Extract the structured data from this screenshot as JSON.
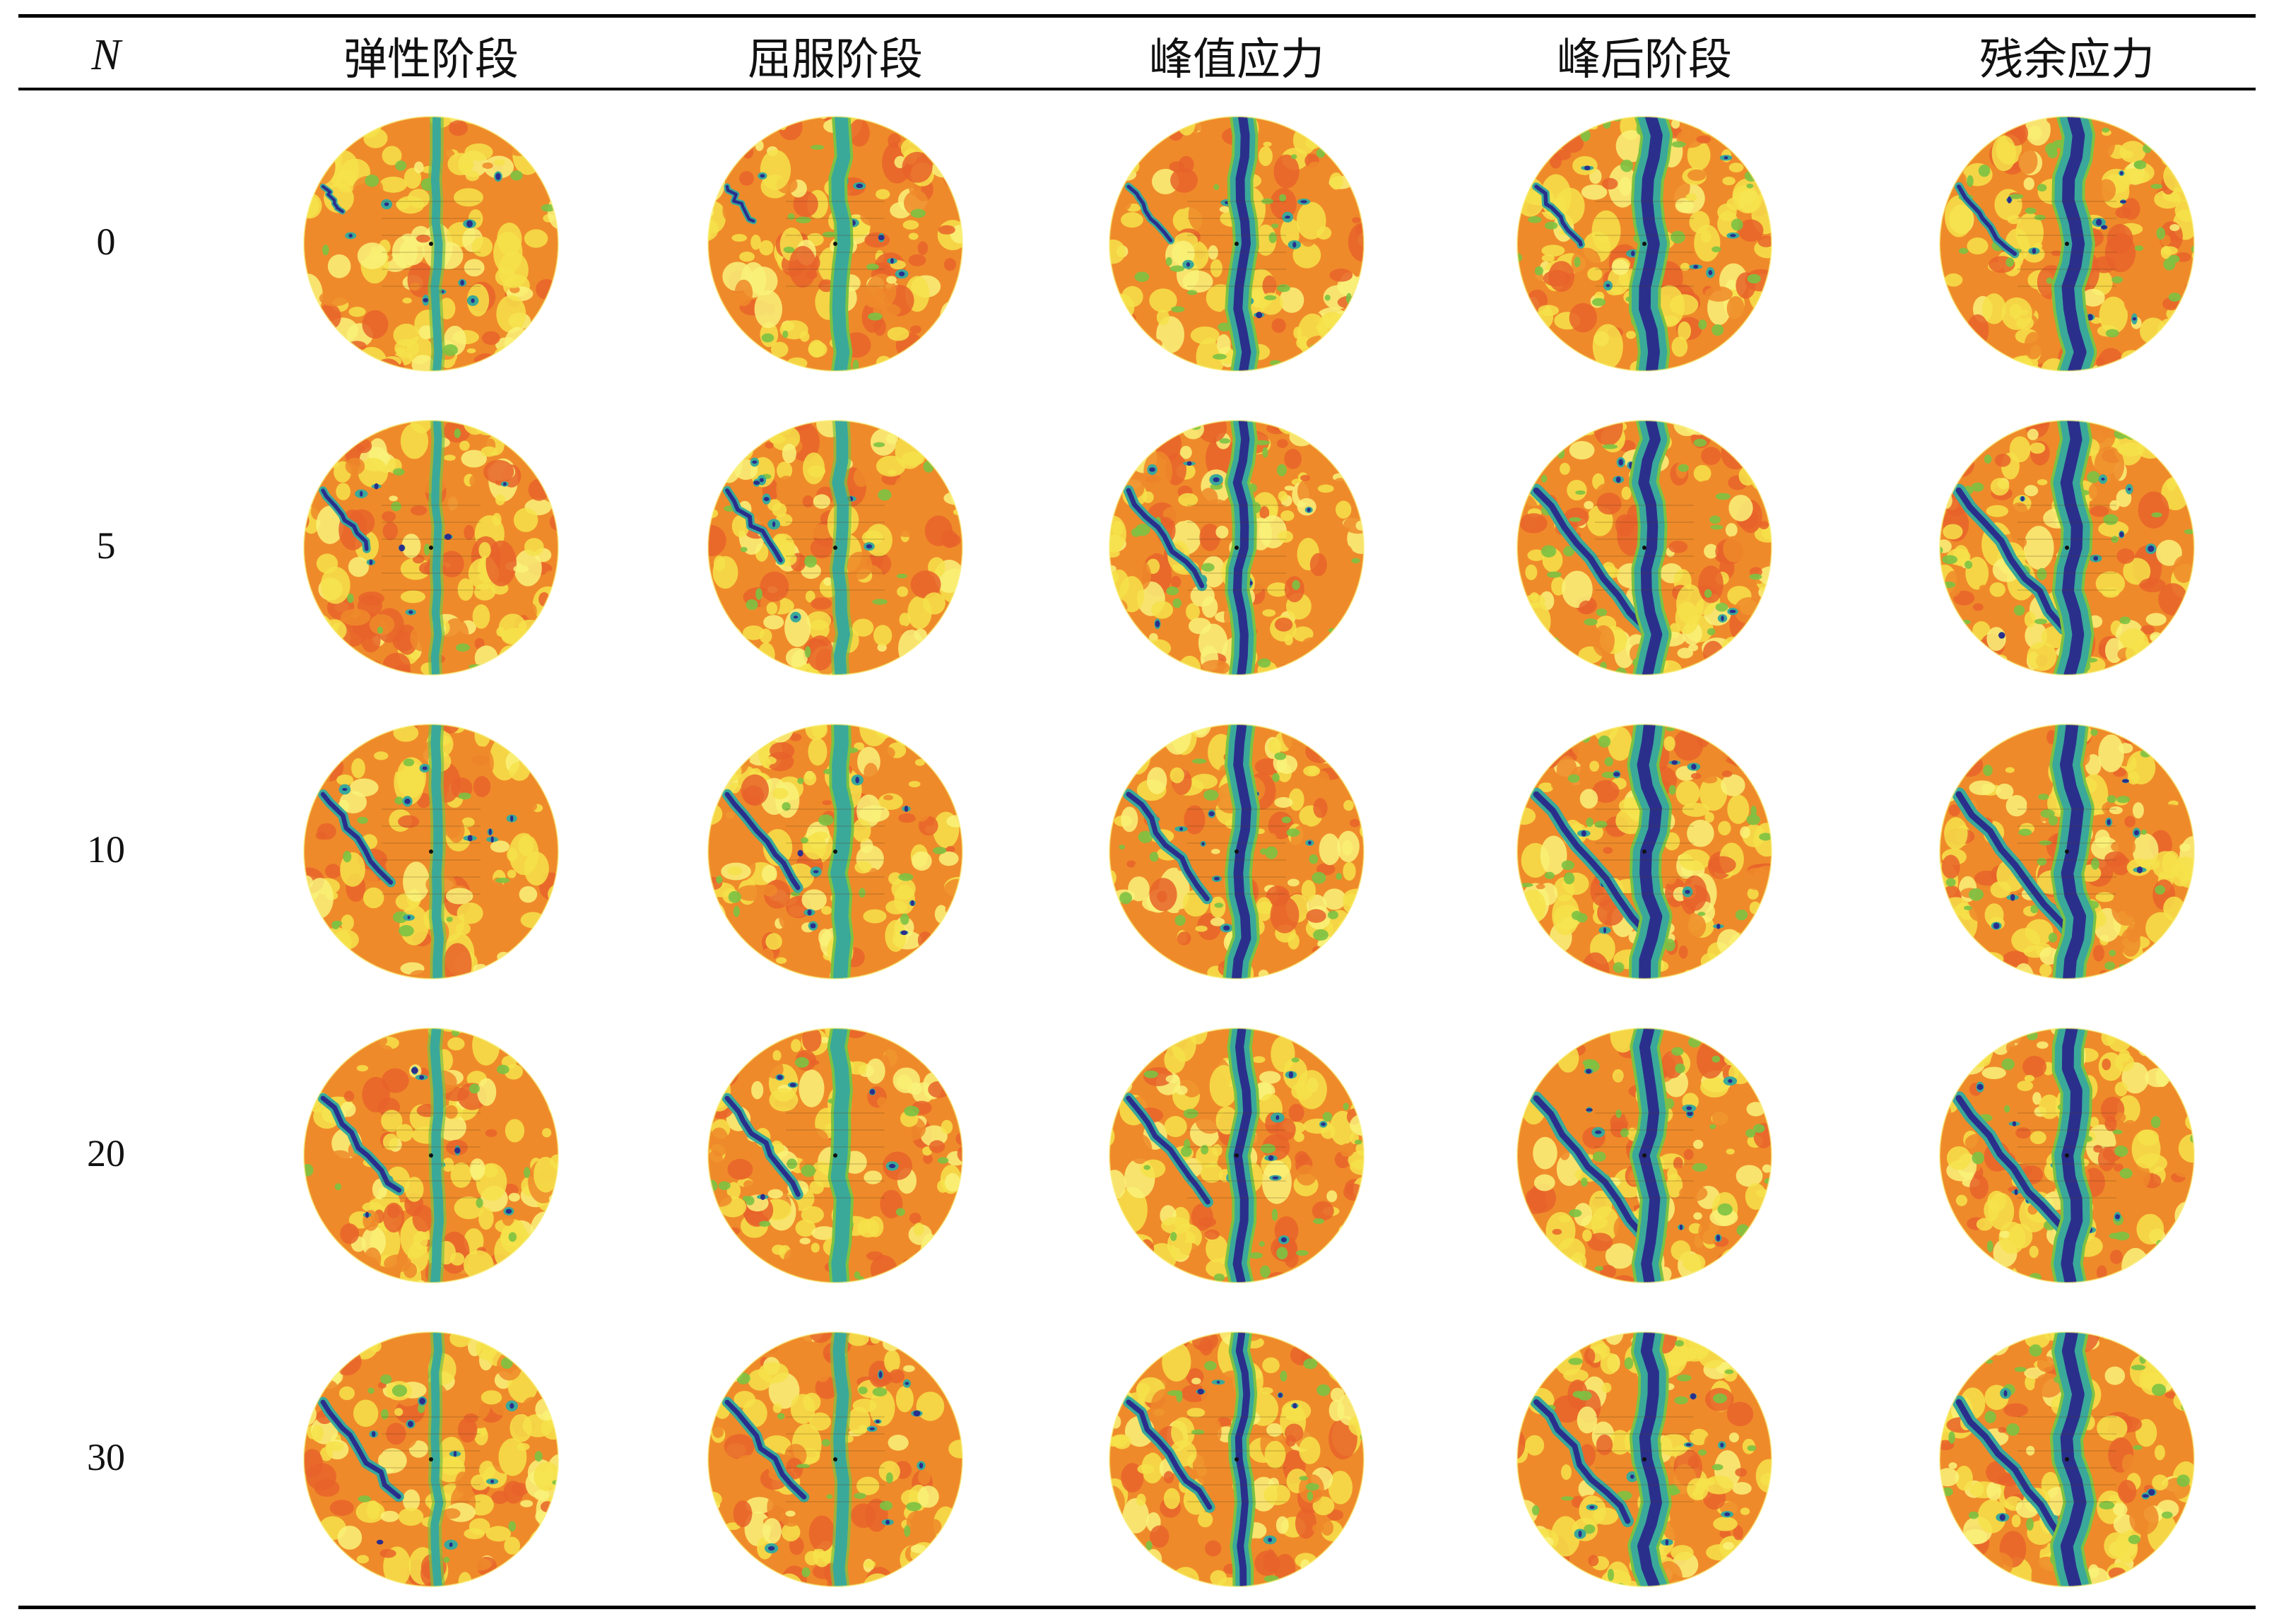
{
  "table": {
    "header": {
      "n_label": "N",
      "stages": [
        "弹性阶段",
        "屈服阶段",
        "峰值应力",
        "峰后阶段",
        "残余应力"
      ]
    },
    "rows": [
      {
        "n": "0",
        "fracture": [
          0.05,
          0.25,
          0.55,
          0.8,
          0.85
        ],
        "diagonal": [
          0.15,
          0.2,
          0.3,
          0.35,
          0.4
        ]
      },
      {
        "n": "5",
        "fracture": [
          0.03,
          0.2,
          0.5,
          0.7,
          0.8
        ],
        "diagonal": [
          0.35,
          0.4,
          0.55,
          0.8,
          0.8
        ]
      },
      {
        "n": "10",
        "fracture": [
          0.1,
          0.3,
          0.6,
          0.8,
          0.85
        ],
        "diagonal": [
          0.5,
          0.55,
          0.6,
          0.8,
          0.85
        ]
      },
      {
        "n": "20",
        "fracture": [
          0.1,
          0.3,
          0.5,
          0.7,
          0.8
        ],
        "diagonal": [
          0.55,
          0.55,
          0.6,
          0.8,
          0.85
        ]
      },
      {
        "n": "30",
        "fracture": [
          0.05,
          0.2,
          0.35,
          0.75,
          0.85
        ],
        "diagonal": [
          0.55,
          0.55,
          0.6,
          0.7,
          0.8
        ]
      }
    ]
  },
  "palette": {
    "orange": "#ef8a2a",
    "red_orange": "#e8632a",
    "yellow": "#f6e24a",
    "light_yellow": "#f9f27a",
    "green": "#7cc243",
    "teal": "#3aa99a",
    "blue": "#2f5aa8",
    "navy": "#2a2f8c"
  }
}
